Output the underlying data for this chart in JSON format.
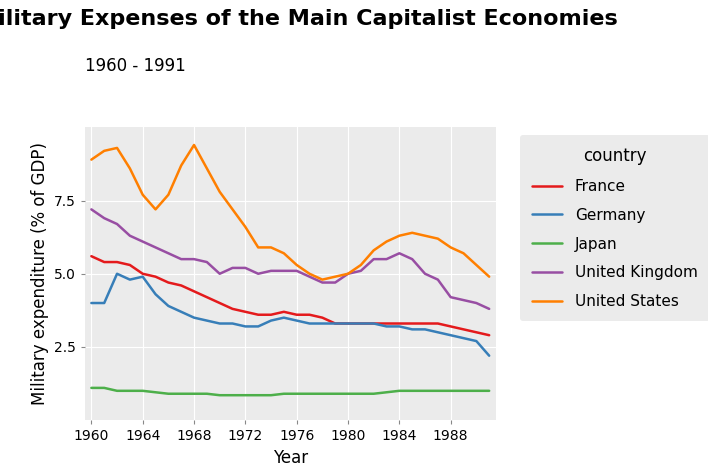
{
  "title": "Military Expenses of the Main Capitalist Economies",
  "subtitle": "1960 - 1991",
  "xlabel": "Year",
  "ylabel": "Military expenditure (% of GDP)",
  "background_color": "#EBEBEB",
  "grid_color": "white",
  "legend_title": "country",
  "years": [
    1960,
    1961,
    1962,
    1963,
    1964,
    1965,
    1966,
    1967,
    1968,
    1969,
    1970,
    1971,
    1972,
    1973,
    1974,
    1975,
    1976,
    1977,
    1978,
    1979,
    1980,
    1981,
    1982,
    1983,
    1984,
    1985,
    1986,
    1987,
    1988,
    1989,
    1990,
    1991
  ],
  "series": {
    "France": {
      "color": "#E41A1C",
      "values": [
        5.6,
        5.4,
        5.4,
        5.3,
        5.0,
        4.9,
        4.7,
        4.6,
        4.4,
        4.2,
        4.0,
        3.8,
        3.7,
        3.6,
        3.6,
        3.7,
        3.6,
        3.6,
        3.5,
        3.3,
        3.3,
        3.3,
        3.3,
        3.3,
        3.3,
        3.3,
        3.3,
        3.3,
        3.2,
        3.1,
        3.0,
        2.9
      ]
    },
    "Germany": {
      "color": "#377EB8",
      "values": [
        4.0,
        4.0,
        5.0,
        4.8,
        4.9,
        4.3,
        3.9,
        3.7,
        3.5,
        3.4,
        3.3,
        3.3,
        3.2,
        3.2,
        3.4,
        3.5,
        3.4,
        3.3,
        3.3,
        3.3,
        3.3,
        3.3,
        3.3,
        3.2,
        3.2,
        3.1,
        3.1,
        3.0,
        2.9,
        2.8,
        2.7,
        2.2
      ]
    },
    "Japan": {
      "color": "#4DAF4A",
      "values": [
        1.1,
        1.1,
        1.0,
        1.0,
        1.0,
        0.95,
        0.9,
        0.9,
        0.9,
        0.9,
        0.85,
        0.85,
        0.85,
        0.85,
        0.85,
        0.9,
        0.9,
        0.9,
        0.9,
        0.9,
        0.9,
        0.9,
        0.9,
        0.95,
        1.0,
        1.0,
        1.0,
        1.0,
        1.0,
        1.0,
        1.0,
        1.0
      ]
    },
    "United Kingdom": {
      "color": "#984EA3",
      "values": [
        7.2,
        6.9,
        6.7,
        6.3,
        6.1,
        5.9,
        5.7,
        5.5,
        5.5,
        5.4,
        5.0,
        5.2,
        5.2,
        5.0,
        5.1,
        5.1,
        5.1,
        4.9,
        4.7,
        4.7,
        5.0,
        5.1,
        5.5,
        5.5,
        5.7,
        5.5,
        5.0,
        4.8,
        4.2,
        4.1,
        4.0,
        3.8
      ]
    },
    "United States": {
      "color": "#FF7F00",
      "values": [
        8.9,
        9.2,
        9.3,
        8.6,
        7.7,
        7.2,
        7.7,
        8.7,
        9.4,
        8.6,
        7.8,
        7.2,
        6.6,
        5.9,
        5.9,
        5.7,
        5.3,
        5.0,
        4.8,
        4.9,
        5.0,
        5.3,
        5.8,
        6.1,
        6.3,
        6.4,
        6.3,
        6.2,
        5.9,
        5.7,
        5.3,
        4.9
      ]
    }
  },
  "ylim": [
    0,
    10
  ],
  "yticks": [
    2.5,
    5.0,
    7.5
  ],
  "xticks": [
    1960,
    1964,
    1968,
    1972,
    1976,
    1980,
    1984,
    1988
  ],
  "line_width": 1.8,
  "title_fontsize": 16,
  "subtitle_fontsize": 12,
  "axis_label_fontsize": 12,
  "tick_fontsize": 10,
  "legend_fontsize": 11
}
